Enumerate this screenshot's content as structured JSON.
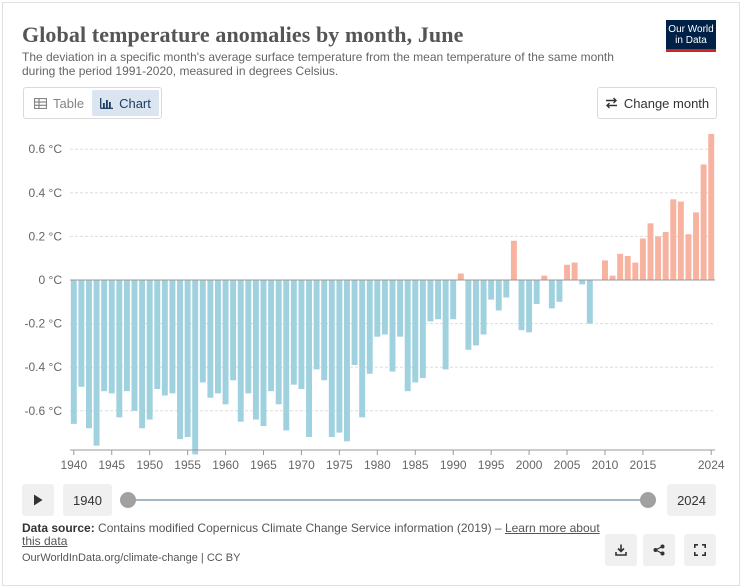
{
  "header": {
    "title": "Global temperature anomalies by month, June",
    "subtitle": "The deviation in a specific month's average surface temperature from the mean temperature of the same month during the period 1991-2020, measured in degrees Celsius.",
    "logo_line1": "Our World",
    "logo_line2": "in Data"
  },
  "controls": {
    "table_label": "Table",
    "chart_label": "Chart",
    "active_tab": "chart",
    "change_month_label": "Change month"
  },
  "timeline": {
    "start_year": "1940",
    "end_year": "2024"
  },
  "footer": {
    "source_label": "Data source:",
    "source_text": "Contains modified Copernicus Climate Change Service information (2019) –",
    "learn_more": "Learn more about this data",
    "url_line": "OurWorldInData.org/climate-change | CC BY"
  },
  "colors": {
    "negative": "#9fd1df",
    "positive": "#f8b2a0",
    "gridline": "#dddddd",
    "axis": "#999999"
  },
  "chart_data": {
    "type": "bar",
    "x": [
      1940,
      1941,
      1942,
      1943,
      1944,
      1945,
      1946,
      1947,
      1948,
      1949,
      1950,
      1951,
      1952,
      1953,
      1954,
      1955,
      1956,
      1957,
      1958,
      1959,
      1960,
      1961,
      1962,
      1963,
      1964,
      1965,
      1966,
      1967,
      1968,
      1969,
      1970,
      1971,
      1972,
      1973,
      1974,
      1975,
      1976,
      1977,
      1978,
      1979,
      1980,
      1981,
      1982,
      1983,
      1984,
      1985,
      1986,
      1987,
      1988,
      1989,
      1990,
      1991,
      1992,
      1993,
      1994,
      1995,
      1996,
      1997,
      1998,
      1999,
      2000,
      2001,
      2002,
      2003,
      2004,
      2005,
      2006,
      2007,
      2008,
      2009,
      2010,
      2011,
      2012,
      2013,
      2014,
      2015,
      2016,
      2017,
      2018,
      2019,
      2020,
      2021,
      2022,
      2023,
      2024
    ],
    "values": [
      -0.66,
      -0.49,
      -0.68,
      -0.76,
      -0.51,
      -0.52,
      -0.63,
      -0.51,
      -0.6,
      -0.68,
      -0.64,
      -0.5,
      -0.53,
      -0.52,
      -0.73,
      -0.72,
      -0.8,
      -0.47,
      -0.54,
      -0.52,
      -0.57,
      -0.46,
      -0.65,
      -0.52,
      -0.64,
      -0.67,
      -0.51,
      -0.57,
      -0.69,
      -0.48,
      -0.5,
      -0.72,
      -0.41,
      -0.46,
      -0.72,
      -0.7,
      -0.74,
      -0.39,
      -0.63,
      -0.43,
      -0.26,
      -0.25,
      -0.42,
      -0.26,
      -0.51,
      -0.47,
      -0.45,
      -0.19,
      -0.18,
      -0.41,
      -0.18,
      0.03,
      -0.32,
      -0.3,
      -0.25,
      -0.09,
      -0.14,
      -0.08,
      0.18,
      -0.23,
      -0.24,
      -0.11,
      0.02,
      -0.13,
      -0.1,
      0.07,
      0.08,
      -0.02,
      -0.2,
      0.0,
      0.09,
      0.02,
      0.12,
      0.11,
      0.08,
      0.19,
      0.26,
      0.2,
      0.22,
      0.37,
      0.36,
      0.21,
      0.31,
      0.53,
      0.67
    ],
    "title": "Global temperature anomalies by month, June",
    "xlabel": "",
    "ylabel": "",
    "ylim": [
      -0.8,
      0.7
    ],
    "yticks": [
      -0.6,
      -0.4,
      -0.2,
      0,
      0.2,
      0.4,
      0.6
    ],
    "ytick_labels": [
      "-0.6 °C",
      "-0.4 °C",
      "-0.2 °C",
      "0 °C",
      "0.2 °C",
      "0.4 °C",
      "0.6 °C"
    ],
    "xticks": [
      1940,
      1945,
      1950,
      1955,
      1960,
      1965,
      1970,
      1975,
      1980,
      1985,
      1990,
      1995,
      2000,
      2005,
      2010,
      2015,
      2024
    ],
    "xtick_labels": [
      "1940",
      "1945",
      "1950",
      "1955",
      "1960",
      "1965",
      "1970",
      "1975",
      "1980",
      "1985",
      "1990",
      "1995",
      "2000",
      "2005",
      "2010",
      "2015",
      "2024"
    ],
    "grid": true,
    "legend": "none"
  }
}
